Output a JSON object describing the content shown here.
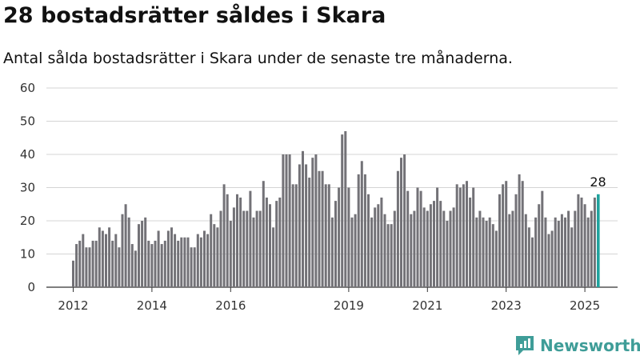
{
  "title": "28 bostadsrätter såldes i Skara",
  "subtitle": "Antal sålda bostadsrätter i Skara under de senaste tre månaderna.",
  "brand": "Newsworthy",
  "colors": {
    "bar": "#737277",
    "highlight": "#20a39e",
    "grid": "#d4d4d4",
    "brand": "#3f9d98"
  },
  "chart_data": {
    "type": "bar",
    "title": "28 bostadsrätter såldes i Skara",
    "subtitle": "Antal sålda bostadsrätter i Skara under de senaste tre månaderna.",
    "xlabel": "",
    "ylabel": "",
    "ylim": [
      0,
      60
    ],
    "yticks": [
      0,
      10,
      20,
      30,
      40,
      50,
      60
    ],
    "xticks": [
      "2012",
      "2014",
      "2016",
      "2019",
      "2021",
      "2023",
      "2025"
    ],
    "grid": true,
    "legend": "none",
    "start": "2012-01",
    "frequency": "monthly",
    "highlight_last": true,
    "last_value_label": "28",
    "values": [
      8,
      13,
      14,
      16,
      12,
      12,
      14,
      14,
      18,
      17,
      16,
      18,
      14,
      16,
      12,
      22,
      25,
      21,
      13,
      11,
      19,
      20,
      21,
      14,
      13,
      14,
      17,
      13,
      14,
      17,
      18,
      16,
      14,
      15,
      15,
      15,
      12,
      12,
      16,
      15,
      17,
      16,
      22,
      19,
      18,
      23,
      31,
      28,
      20,
      24,
      28,
      27,
      23,
      23,
      29,
      21,
      23,
      23,
      32,
      27,
      25,
      18,
      26,
      27,
      40,
      40,
      40,
      31,
      31,
      37,
      41,
      37,
      33,
      39,
      40,
      35,
      35,
      31,
      31,
      21,
      26,
      30,
      46,
      47,
      30,
      21,
      22,
      34,
      38,
      34,
      28,
      21,
      24,
      25,
      27,
      22,
      19,
      19,
      23,
      35,
      39,
      40,
      29,
      22,
      23,
      30,
      29,
      24,
      23,
      25,
      26,
      30,
      26,
      23,
      20,
      23,
      24,
      31,
      30,
      31,
      32,
      27,
      30,
      21,
      23,
      21,
      20,
      21,
      19,
      17,
      28,
      31,
      32,
      22,
      23,
      28,
      34,
      32,
      22,
      18,
      15,
      21,
      25,
      29,
      21,
      16,
      17,
      21,
      20,
      22,
      21,
      23,
      18,
      23,
      28,
      27,
      25,
      21,
      23,
      27,
      28
    ]
  }
}
